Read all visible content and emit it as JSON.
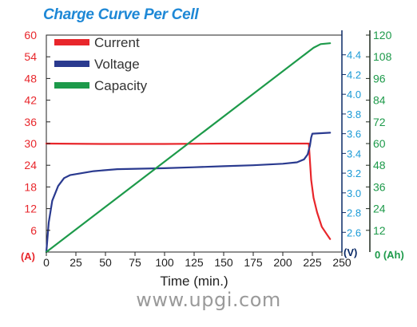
{
  "chart_data": {
    "type": "line",
    "title": "Charge Curve Per Cell",
    "xlabel": "Time (min.)",
    "x_ticks": [
      0,
      25,
      50,
      75,
      100,
      125,
      150,
      175,
      200,
      225,
      250
    ],
    "xlim": [
      0,
      250
    ],
    "axes": {
      "left": {
        "unit_label": "(A)",
        "color": "#e8262b",
        "ticks": [
          6,
          12,
          18,
          24,
          30,
          36,
          42,
          48,
          54,
          60
        ],
        "lim": [
          0,
          60
        ]
      },
      "right_inner": {
        "unit_label": "(V)",
        "color": "#1a9ad6",
        "ticks": [
          2.6,
          2.8,
          3.0,
          3.2,
          3.4,
          3.6,
          3.8,
          4.0,
          4.2,
          4.4
        ],
        "lim": [
          2.4,
          4.6
        ]
      },
      "right_outer": {
        "unit_label": "0 (Ah)",
        "color": "#1d9a4a",
        "ticks": [
          12,
          24,
          36,
          48,
          60,
          72,
          84,
          96,
          108,
          120
        ],
        "lim": [
          0,
          120
        ]
      }
    },
    "legend": {
      "position": "top-left"
    },
    "grid": false,
    "series": [
      {
        "name": "Current",
        "axis": "left",
        "color": "#e8262b",
        "points": [
          [
            0,
            30
          ],
          [
            50,
            29.9
          ],
          [
            100,
            29.9
          ],
          [
            150,
            30
          ],
          [
            200,
            30
          ],
          [
            222,
            30
          ],
          [
            224,
            20
          ],
          [
            226,
            15
          ],
          [
            229,
            11
          ],
          [
            233,
            7
          ],
          [
            237,
            5
          ],
          [
            240,
            3.6
          ]
        ]
      },
      {
        "name": "Voltage",
        "axis": "right_inner",
        "color": "#2a3a8f",
        "points": [
          [
            0,
            2.4
          ],
          [
            2,
            2.7
          ],
          [
            5,
            2.92
          ],
          [
            10,
            3.07
          ],
          [
            15,
            3.15
          ],
          [
            20,
            3.18
          ],
          [
            30,
            3.2
          ],
          [
            40,
            3.22
          ],
          [
            60,
            3.24
          ],
          [
            80,
            3.245
          ],
          [
            100,
            3.25
          ],
          [
            125,
            3.26
          ],
          [
            150,
            3.27
          ],
          [
            175,
            3.28
          ],
          [
            200,
            3.295
          ],
          [
            212,
            3.31
          ],
          [
            218,
            3.34
          ],
          [
            221,
            3.39
          ],
          [
            223,
            3.48
          ],
          [
            224,
            3.56
          ],
          [
            225,
            3.6
          ],
          [
            240,
            3.61
          ]
        ]
      },
      {
        "name": "Capacity",
        "axis": "right_outer",
        "color": "#1d9a4a",
        "points": [
          [
            0,
            0
          ],
          [
            222,
            111
          ],
          [
            226,
            113
          ],
          [
            232,
            115
          ],
          [
            240,
            115.5
          ]
        ]
      }
    ]
  },
  "watermark": "www.upgi.com"
}
